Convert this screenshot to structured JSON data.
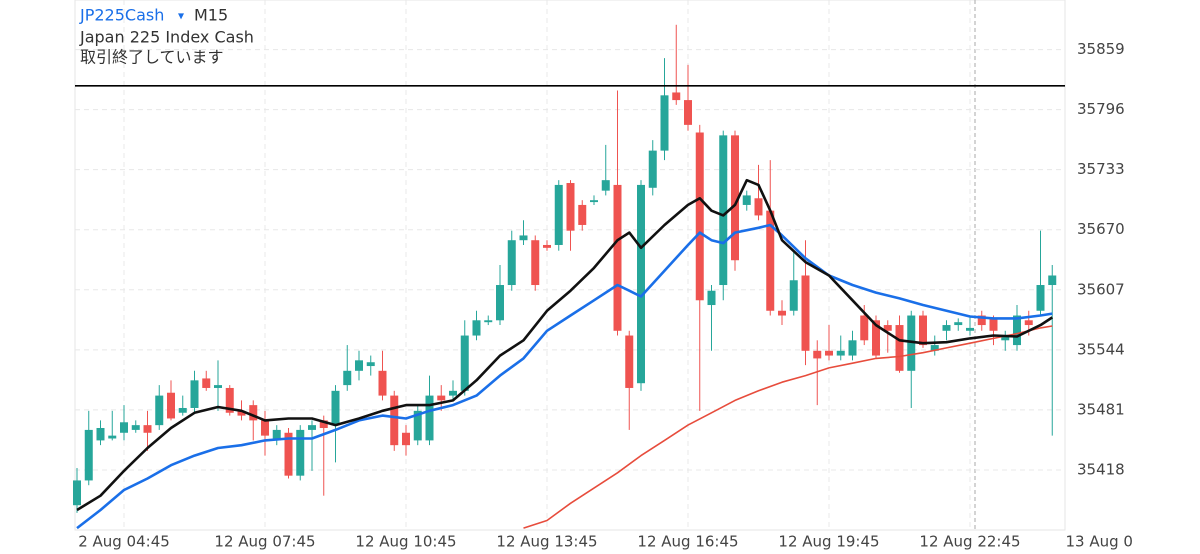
{
  "chart_data": {
    "type": "candlestick",
    "symbol": "JP225Cash",
    "symbol_menu": "▾",
    "timeframe": "M15",
    "subtitle": "Japan 225 Index Cash",
    "status": "取引終了しています",
    "ylim": [
      35355,
      35911
    ],
    "yticks": [
      35418,
      35481,
      35544,
      35607,
      35670,
      35733,
      35796,
      35859
    ],
    "xticks": [
      {
        "value": 4,
        "label": "2 Aug 04:45"
      },
      {
        "value": 16,
        "label": "12 Aug 07:45"
      },
      {
        "value": 28,
        "label": "12 Aug 10:45"
      },
      {
        "value": 40,
        "label": "12 Aug 13:45"
      },
      {
        "value": 52,
        "label": "12 Aug 16:45"
      },
      {
        "value": 64,
        "label": "12 Aug 19:45"
      },
      {
        "value": 76,
        "label": "12 Aug 22:45"
      },
      {
        "value": 87,
        "label": "13 Aug 0"
      }
    ],
    "grid": true,
    "up_color": "#26a69a",
    "down_color": "#ef5350",
    "price_line": 35821,
    "open": [
      35381,
      35407,
      35449,
      35451,
      35457,
      35460,
      35465,
      35465,
      35499,
      35478,
      35483,
      35514,
      35504,
      35504,
      35480,
      35486,
      35470,
      35449,
      35457,
      35412,
      35460,
      35470,
      35465,
      35507,
      35522,
      35527,
      35522,
      35496,
      35457,
      35449,
      35449,
      35496,
      35496,
      35501,
      35559,
      35573,
      35575,
      35612,
      35659,
      35659,
      35654,
      35654,
      35719,
      35696,
      35699,
      35711,
      35717,
      35559,
      35509,
      35714,
      35753,
      35814,
      35806,
      35772,
      35591,
      35612,
      35769,
      35696,
      35703,
      35690,
      35585,
      35585,
      35622,
      35543,
      35543,
      35538,
      35538,
      35580,
      35575,
      35570,
      35570,
      35522,
      35580,
      35543,
      35564,
      35570,
      35564,
      35580,
      35577,
      35554,
      35549,
      35575,
      35585,
      35612
    ],
    "high": [
      35420,
      35480,
      35470,
      35480,
      35486,
      35470,
      35480,
      35507,
      35512,
      35496,
      35522,
      35522,
      35533,
      35507,
      35491,
      35491,
      35480,
      35465,
      35462,
      35465,
      35470,
      35475,
      35507,
      35549,
      35543,
      35538,
      35543,
      35501,
      35465,
      35486,
      35517,
      35507,
      35512,
      35575,
      35585,
      35580,
      35633,
      35669,
      35680,
      35664,
      35659,
      35722,
      35722,
      35701,
      35706,
      35759,
      35816,
      35564,
      35722,
      35764,
      35850,
      35885,
      35843,
      35780,
      35612,
      35774,
      35774,
      35711,
      35738,
      35743,
      35596,
      35648,
      35659,
      35554,
      35570,
      35559,
      35564,
      35591,
      35580,
      35575,
      35580,
      35585,
      35585,
      35559,
      35575,
      35577,
      35580,
      35585,
      35580,
      35564,
      35591,
      35585,
      35669,
      35633
    ],
    "low": [
      35373,
      35402,
      35444,
      35449,
      35449,
      35457,
      35438,
      35460,
      35470,
      35475,
      35478,
      35501,
      35480,
      35475,
      35470,
      35449,
      35433,
      35444,
      35409,
      35407,
      35417,
      35391,
      35426,
      35501,
      35512,
      35517,
      35491,
      35438,
      35433,
      35444,
      35444,
      35480,
      35491,
      35496,
      35554,
      35570,
      35570,
      35606,
      35654,
      35606,
      35648,
      35648,
      35648,
      35669,
      35696,
      35706,
      35559,
      35460,
      35501,
      35706,
      35743,
      35801,
      35774,
      35480,
      35543,
      35596,
      35627,
      35690,
      35680,
      35580,
      35570,
      35580,
      35528,
      35486,
      35533,
      35533,
      35533,
      35549,
      35535,
      35541,
      35520,
      35483,
      35546,
      35538,
      35554,
      35564,
      35559,
      35564,
      35549,
      35543,
      35543,
      35559,
      35580,
      35454
    ],
    "close": [
      35407,
      35460,
      35462,
      35454,
      35468,
      35465,
      35457,
      35496,
      35472,
      35483,
      35512,
      35504,
      35507,
      35478,
      35475,
      35470,
      35454,
      35460,
      35412,
      35460,
      35465,
      35462,
      35501,
      35522,
      35533,
      35531,
      35496,
      35444,
      35444,
      35480,
      35496,
      35491,
      35501,
      35559,
      35575,
      35575,
      35612,
      35659,
      35664,
      35612,
      35651,
      35717,
      35669,
      35675,
      35701,
      35722,
      35564,
      35504,
      35717,
      35753,
      35811,
      35806,
      35780,
      35596,
      35606,
      35769,
      35638,
      35706,
      35685,
      35585,
      35580,
      35617,
      35543,
      35535,
      35538,
      35543,
      35554,
      35554,
      35538,
      35564,
      35522,
      35580,
      35549,
      35549,
      35570,
      35573,
      35567,
      35570,
      35564,
      35559,
      35580,
      35570,
      35612,
      35622
    ],
    "moving_averages": [
      {
        "color": "#e74c3c",
        "x": [
          38,
          40,
          42,
          44,
          46,
          48,
          50,
          52,
          54,
          56,
          58,
          60,
          62,
          64,
          66,
          68,
          70,
          72,
          74,
          76,
          78,
          80,
          82,
          83
        ],
        "values": [
          35357,
          35365,
          35383,
          35399,
          35415,
          35433,
          35449,
          35465,
          35478,
          35491,
          35501,
          35510,
          35517,
          35525,
          35530,
          35535,
          35537,
          35541,
          35546,
          35551,
          35556,
          35561,
          35567,
          35569
        ]
      },
      {
        "color": "#1a6fe8",
        "x": [
          0,
          2,
          4,
          6,
          8,
          10,
          12,
          14,
          16,
          18,
          20,
          22,
          24,
          26,
          28,
          30,
          32,
          34,
          36,
          38,
          40,
          42,
          44,
          46,
          47,
          48,
          50,
          52,
          53,
          54,
          55,
          56,
          58,
          59,
          60,
          62,
          64,
          66,
          68,
          70,
          72,
          74,
          76,
          78,
          80,
          82,
          83
        ],
        "values": [
          35357,
          35376,
          35397,
          35409,
          35423,
          35433,
          35441,
          35444,
          35449,
          35451,
          35451,
          35460,
          35470,
          35475,
          35472,
          35480,
          35486,
          35496,
          35517,
          35535,
          35564,
          35580,
          35596,
          35612,
          35606,
          35600,
          35627,
          35654,
          35667,
          35659,
          35656,
          35667,
          35672,
          35675,
          35664,
          35640,
          35622,
          35612,
          35604,
          35598,
          35591,
          35585,
          35579,
          35577,
          35577,
          35580,
          35582
        ]
      },
      {
        "color": "#111111",
        "x": [
          0,
          2,
          4,
          6,
          8,
          10,
          12,
          14,
          16,
          18,
          20,
          22,
          24,
          26,
          28,
          30,
          32,
          34,
          36,
          38,
          40,
          42,
          44,
          46,
          47,
          48,
          50,
          52,
          53,
          54,
          55,
          56,
          57,
          58,
          59,
          60,
          62,
          64,
          66,
          68,
          70,
          72,
          74,
          76,
          78,
          80,
          82,
          83
        ],
        "values": [
          35376,
          35391,
          35417,
          35441,
          35462,
          35478,
          35484,
          35480,
          35470,
          35472,
          35472,
          35465,
          35472,
          35480,
          35486,
          35486,
          35491,
          35512,
          35538,
          35554,
          35585,
          35606,
          35630,
          35659,
          35667,
          35651,
          35675,
          35696,
          35703,
          35690,
          35685,
          35696,
          35722,
          35717,
          35690,
          35659,
          35636,
          35622,
          35596,
          35570,
          35554,
          35551,
          35552,
          35556,
          35559,
          35558,
          35570,
          35578
        ]
      }
    ]
  }
}
